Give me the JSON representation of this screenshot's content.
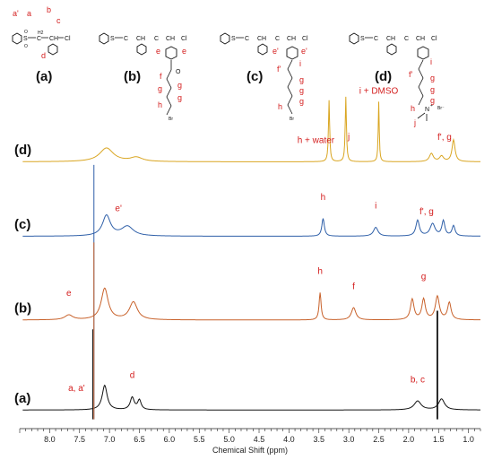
{
  "structures": [
    {
      "label": "(a)",
      "atoms": [
        "S",
        "O",
        "O",
        "C",
        "H2",
        "CH",
        "Cl"
      ],
      "positions": [
        "a'",
        "a",
        "b",
        "c",
        "d"
      ]
    },
    {
      "label": "(b)",
      "atoms": [
        "S",
        "O",
        "O",
        "C",
        "H2",
        "CH",
        "C",
        "H2",
        "CH",
        "Cl",
        "y",
        "O"
      ],
      "positions": [
        "e",
        "e",
        "f",
        "g",
        "g",
        "g",
        "h",
        "Br"
      ]
    },
    {
      "label": "(c)",
      "atoms": [
        "S",
        "O",
        "O",
        "C",
        "H2",
        "CH",
        "C",
        "H2",
        "CH",
        "Cl",
        "y"
      ],
      "positions": [
        "e'",
        "e'",
        "i",
        "f'",
        "g",
        "g",
        "g",
        "h",
        "Br"
      ]
    },
    {
      "label": "(d)",
      "atoms": [
        "S",
        "O",
        "O",
        "C",
        "H2",
        "CH",
        "C",
        "H2",
        "CH",
        "Cl",
        "y",
        "N",
        "+",
        "Br⁻"
      ],
      "positions": [
        "f'",
        "i",
        "g",
        "g",
        "g",
        "h",
        "j"
      ]
    }
  ],
  "chart_data": {
    "type": "line",
    "xlabel": "Chemical Shift (ppm)",
    "xlim": [
      8.5,
      0.8
    ],
    "x_reversed": true,
    "ticks": [
      "8.0",
      "7.5",
      "7.0",
      "6.5",
      "6.0",
      "5.5",
      "5.0",
      "4.5",
      "4.0",
      "3.5",
      "3.0",
      "2.5",
      "2.0",
      "1.5",
      "1.0"
    ],
    "tick_values": [
      8.0,
      7.5,
      7.0,
      6.5,
      6.0,
      5.5,
      5.0,
      4.5,
      4.0,
      3.5,
      3.0,
      2.5,
      2.0,
      1.5,
      1.0
    ],
    "series": [
      {
        "name": "(d)",
        "color": "#d9a520",
        "baseline": 0.12,
        "offset": 0.86,
        "peaks": [
          [
            7.05,
            0.2,
            0.14
          ],
          [
            6.55,
            0.06,
            0.12
          ],
          [
            3.33,
            0.9,
            0.012
          ],
          [
            3.05,
            0.95,
            0.012
          ],
          [
            2.5,
            0.88,
            0.01
          ],
          [
            1.62,
            0.12,
            0.04
          ],
          [
            1.45,
            0.08,
            0.04
          ],
          [
            1.25,
            0.32,
            0.03
          ]
        ]
      },
      {
        "name": "(c)",
        "color": "#2e5fa8",
        "baseline": 0.1,
        "offset": 0.62,
        "peaks": [
          [
            7.05,
            0.3,
            0.08
          ],
          [
            6.7,
            0.14,
            0.12
          ],
          [
            3.43,
            0.26,
            0.025
          ],
          [
            2.55,
            0.13,
            0.045
          ],
          [
            1.85,
            0.23,
            0.035
          ],
          [
            1.6,
            0.18,
            0.05
          ],
          [
            1.42,
            0.22,
            0.03
          ],
          [
            1.25,
            0.15,
            0.03
          ]
        ]
      },
      {
        "name": "(b)",
        "color": "#c8612a",
        "baseline": 0.1,
        "offset": 0.35,
        "peaks": [
          [
            7.68,
            0.07,
            0.08
          ],
          [
            7.08,
            0.46,
            0.07
          ],
          [
            6.6,
            0.26,
            0.08
          ],
          [
            3.48,
            0.4,
            0.02
          ],
          [
            2.92,
            0.18,
            0.045
          ],
          [
            1.94,
            0.3,
            0.035
          ],
          [
            1.75,
            0.3,
            0.035
          ],
          [
            1.52,
            0.34,
            0.04
          ],
          [
            1.32,
            0.25,
            0.035
          ]
        ]
      },
      {
        "name": "(a)",
        "color": "#111111",
        "baseline": 0.02,
        "offset": 0.06,
        "peaks": [
          [
            7.08,
            0.36,
            0.05
          ],
          [
            6.62,
            0.18,
            0.04
          ],
          [
            6.5,
            0.14,
            0.035
          ],
          [
            1.85,
            0.13,
            0.07
          ],
          [
            1.45,
            0.16,
            0.06
          ]
        ]
      }
    ],
    "annotations": [
      {
        "text": "h + water",
        "x": 3.55,
        "series": "(d)"
      },
      {
        "text": "j",
        "x": 3.0,
        "series": "(d)"
      },
      {
        "text": "i + DMSO",
        "x": 2.5,
        "series": "(d)"
      },
      {
        "text": "f', g",
        "x": 1.4,
        "series": "(d)"
      },
      {
        "text": "e'",
        "x": 6.85,
        "series": "(c)"
      },
      {
        "text": "h",
        "x": 3.43,
        "series": "(c)"
      },
      {
        "text": "i",
        "x": 2.55,
        "series": "(c)"
      },
      {
        "text": "f', g",
        "x": 1.7,
        "series": "(c)"
      },
      {
        "text": "e",
        "x": 7.68,
        "series": "(b)"
      },
      {
        "text": "h",
        "x": 3.48,
        "series": "(b)"
      },
      {
        "text": "f",
        "x": 2.92,
        "series": "(b)"
      },
      {
        "text": "g",
        "x": 1.75,
        "series": "(b)"
      },
      {
        "text": "a, a'",
        "x": 7.55,
        "series": "(a)"
      },
      {
        "text": "d",
        "x": 6.62,
        "series": "(a)"
      },
      {
        "text": "b, c",
        "x": 1.85,
        "series": "(a)"
      }
    ]
  }
}
